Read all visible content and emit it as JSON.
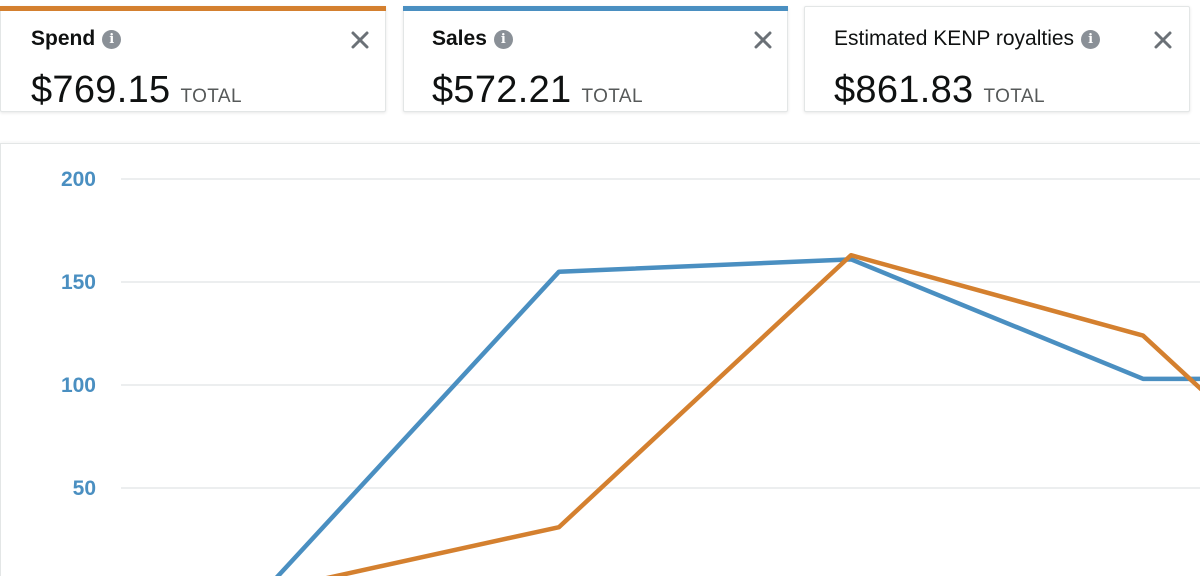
{
  "cards": [
    {
      "title": "Spend",
      "value": "$769.15",
      "total_label": "TOTAL",
      "accent_color": "#d4802f",
      "info_icon": "info-icon",
      "close_icon": "close-icon",
      "info_glyph": "i"
    },
    {
      "title": "Sales",
      "value": "$572.21",
      "total_label": "TOTAL",
      "accent_color": "#4a8fc1",
      "info_icon": "info-icon",
      "close_icon": "close-icon",
      "info_glyph": "i"
    },
    {
      "title": "Estimated KENP royalties",
      "value": "$861.83",
      "total_label": "TOTAL",
      "accent_color": null,
      "info_icon": "info-icon",
      "close_icon": "close-icon",
      "info_glyph": "i"
    }
  ],
  "chart_data": {
    "type": "line",
    "y_ticks": [
      "200",
      "150",
      "100",
      "50"
    ],
    "ylim": [
      0,
      200
    ],
    "grid": true,
    "tick_color": "#4a8fc1",
    "series": [
      {
        "color": "#4a8fc1",
        "values": [
          2,
          155,
          161,
          103,
          103
        ]
      },
      {
        "color": "#d4802f",
        "values": [
          0,
          31,
          163,
          124,
          98
        ]
      }
    ]
  }
}
